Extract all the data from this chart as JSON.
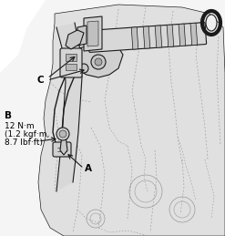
{
  "fig_width": 2.47,
  "fig_height": 2.59,
  "dpi": 100,
  "bg_color": "#ffffff",
  "label_A": "A",
  "label_B": "B",
  "label_C": "C",
  "torque_line1": "12 N·m",
  "torque_line2": "(1.2 kgf·m,",
  "torque_line3": "8.7 lbf·ft)",
  "font_color": "#000000",
  "label_fontsize": 7.5,
  "torque_fontsize": 6.5,
  "lc": "#1a1a1a",
  "lw_main": 0.8,
  "lw_thin": 0.4
}
